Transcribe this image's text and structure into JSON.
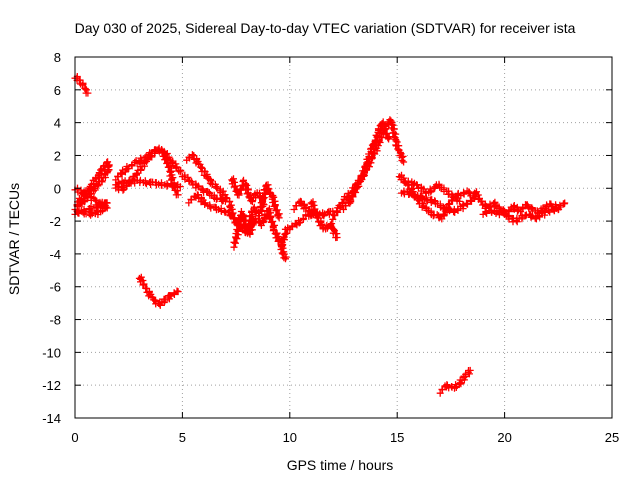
{
  "chart_data": {
    "type": "scatter",
    "title": "Day 030 of 2025, Sidereal Day-to-day VTEC variation (SDTVAR) for receiver ista",
    "xlabel": "GPS time / hours",
    "ylabel": "SDTVAR / TECUs",
    "xlim": [
      0,
      25
    ],
    "ylim": [
      -14,
      8
    ],
    "grid": true,
    "x_ticks": [
      "0",
      "5",
      "10",
      "15",
      "20",
      "25"
    ],
    "y_ticks": [
      "-14",
      "-12",
      "-10",
      "-8",
      "-6",
      "-4",
      "-2",
      "0",
      "2",
      "4",
      "6",
      "8"
    ],
    "marker": "+",
    "series_color": "#ff0000",
    "series": [
      {
        "name": "SDTVAR",
        "segments": [
          {
            "x": [
              0.0,
              0.2,
              0.4,
              0.6
            ],
            "y": [
              6.8,
              6.6,
              6.2,
              5.8
            ]
          },
          {
            "x": [
              0.0,
              0.4,
              0.8,
              1.2,
              1.6,
              1.5,
              1.2,
              0.9,
              0.6,
              0.3,
              0.1
            ],
            "y": [
              -1.2,
              -0.8,
              -0.2,
              0.4,
              1.2,
              1.6,
              1.0,
              0.4,
              -0.1,
              -0.6,
              -1.0
            ]
          },
          {
            "x": [
              0.0,
              0.5,
              1.0,
              1.5
            ],
            "y": [
              0.0,
              -0.4,
              -0.8,
              -1.2
            ]
          },
          {
            "x": [
              0.0,
              0.4,
              0.8,
              1.2,
              1.5,
              1.3,
              0.9,
              0.5,
              0.1
            ],
            "y": [
              -1.5,
              -1.4,
              -1.2,
              -1.0,
              -0.8,
              -1.3,
              -1.6,
              -1.5,
              -1.4
            ]
          },
          {
            "x": [
              1.9,
              2.4,
              2.9,
              3.4,
              3.9,
              4.2,
              4.5,
              4.8,
              4.9
            ],
            "y": [
              0.6,
              1.2,
              1.6,
              2.0,
              2.4,
              2.1,
              1.6,
              1.2,
              1.0
            ]
          },
          {
            "x": [
              1.9,
              2.5,
              3.1,
              3.7,
              4.3,
              4.9
            ],
            "y": [
              0.3,
              0.4,
              0.4,
              0.3,
              0.2,
              0.1
            ]
          },
          {
            "x": [
              1.9,
              2.2,
              2.6,
              3.0,
              3.4,
              3.8,
              4.1,
              4.4,
              4.6,
              4.8
            ],
            "y": [
              0.1,
              -0.1,
              0.4,
              1.1,
              1.8,
              2.4,
              2.2,
              1.2,
              0.2,
              -0.4
            ]
          },
          {
            "x": [
              3.0,
              3.3,
              3.6,
              3.9,
              4.2,
              4.5,
              4.8
            ],
            "y": [
              -5.4,
              -6.1,
              -6.7,
              -7.1,
              -6.8,
              -6.5,
              -6.3
            ]
          },
          {
            "x": [
              5.2,
              5.5,
              5.8,
              6.1,
              6.4,
              6.8,
              7.2
            ],
            "y": [
              1.8,
              2.0,
              1.4,
              0.8,
              0.3,
              -0.2,
              -0.8
            ]
          },
          {
            "x": [
              5.3,
              5.7,
              6.1,
              6.5,
              7.0,
              7.4
            ],
            "y": [
              -0.8,
              -0.4,
              -1.0,
              -1.2,
              -1.4,
              -1.8
            ]
          },
          {
            "x": [
              5.0,
              5.4,
              5.8,
              6.2,
              6.6,
              7.0
            ],
            "y": [
              0.8,
              0.4,
              0.0,
              -0.3,
              -0.6,
              -0.8
            ]
          },
          {
            "x": [
              7.2,
              7.5,
              7.8,
              8.1,
              8.4,
              8.7,
              9.0,
              9.3,
              9.6,
              9.9
            ],
            "y": [
              -1.0,
              -2.2,
              -1.5,
              -2.8,
              -1.8,
              -2.2,
              -1.3,
              -2.6,
              -3.5,
              -2.4
            ]
          },
          {
            "x": [
              7.4,
              7.7,
              8.0,
              8.3,
              8.6,
              8.9,
              9.2,
              9.5
            ],
            "y": [
              -3.5,
              -2.0,
              -2.8,
              -1.2,
              -1.6,
              0.2,
              -0.6,
              -1.8
            ]
          },
          {
            "x": [
              7.3,
              7.6,
              7.9,
              8.2,
              8.5,
              8.8
            ],
            "y": [
              0.6,
              -0.4,
              0.4,
              -0.8,
              -0.2,
              -1.0
            ]
          },
          {
            "x": [
              9.6,
              9.7,
              9.8
            ],
            "y": [
              -3.4,
              -4.0,
              -4.3
            ]
          },
          {
            "x": [
              10.0,
              10.4,
              10.8,
              11.2,
              11.6,
              12.0
            ],
            "y": [
              -2.4,
              -2.1,
              -1.7,
              -1.5,
              -1.6,
              -1.4
            ]
          },
          {
            "x": [
              10.2,
              10.5,
              10.8,
              11.1
            ],
            "y": [
              -1.2,
              -0.8,
              -1.3,
              -1.6
            ]
          },
          {
            "x": [
              11.0,
              11.3,
              11.6,
              11.9,
              12.2
            ],
            "y": [
              -0.8,
              -1.8,
              -2.5,
              -2.2,
              -3.0
            ]
          },
          {
            "x": [
              12.0,
              12.3,
              12.6,
              12.9,
              13.2,
              13.5,
              13.8,
              14.1,
              14.4,
              14.7,
              15.0,
              15.3
            ],
            "y": [
              -1.8,
              -1.2,
              -0.6,
              -0.2,
              0.4,
              1.0,
              1.8,
              2.6,
              3.6,
              4.2,
              2.6,
              1.6
            ]
          },
          {
            "x": [
              12.5,
              12.8,
              13.1,
              13.4,
              13.7,
              14.0,
              14.3,
              14.6
            ],
            "y": [
              -1.2,
              -0.8,
              0.0,
              0.8,
              2.0,
              3.0,
              4.0,
              3.0
            ]
          },
          {
            "x": [
              15.1,
              15.5,
              15.9,
              16.3,
              16.7,
              17.1,
              17.5,
              17.9,
              18.3,
              18.6
            ],
            "y": [
              0.8,
              0.2,
              -0.6,
              -1.2,
              -1.6,
              -1.8,
              -0.8,
              -0.4,
              -0.2,
              -0.6
            ]
          },
          {
            "x": [
              15.2,
              15.7,
              16.2,
              16.7,
              17.2,
              17.7,
              18.2,
              18.6
            ],
            "y": [
              -0.2,
              -0.4,
              -0.6,
              -0.8,
              -1.2,
              -1.4,
              -1.0,
              -0.6
            ]
          },
          {
            "x": [
              15.4,
              15.9,
              16.4,
              16.9,
              17.4,
              17.9
            ],
            "y": [
              0.4,
              0.2,
              -0.3,
              0.2,
              -0.3,
              -0.8
            ]
          },
          {
            "x": [
              18.6,
              18.9,
              19.2,
              19.5,
              19.8,
              20.1,
              20.4,
              20.7,
              21.0,
              21.3,
              21.6,
              21.9,
              22.2,
              22.5,
              22.8
            ],
            "y": [
              -0.2,
              -0.8,
              -1.2,
              -0.9,
              -1.3,
              -1.5,
              -1.1,
              -1.4,
              -1.0,
              -1.3,
              -1.5,
              -1.1,
              -1.0,
              -1.2,
              -0.9
            ]
          },
          {
            "x": [
              19.0,
              19.5,
              20.0,
              20.5,
              21.0,
              21.5,
              22.0,
              22.5
            ],
            "y": [
              -1.5,
              -1.4,
              -1.6,
              -2.0,
              -1.6,
              -1.8,
              -1.4,
              -1.3
            ]
          },
          {
            "x": [
              17.0,
              17.3,
              17.6,
              17.9,
              18.2,
              18.4
            ],
            "y": [
              -12.4,
              -12.0,
              -12.2,
              -11.9,
              -11.4,
              -11.1
            ]
          }
        ]
      }
    ]
  }
}
